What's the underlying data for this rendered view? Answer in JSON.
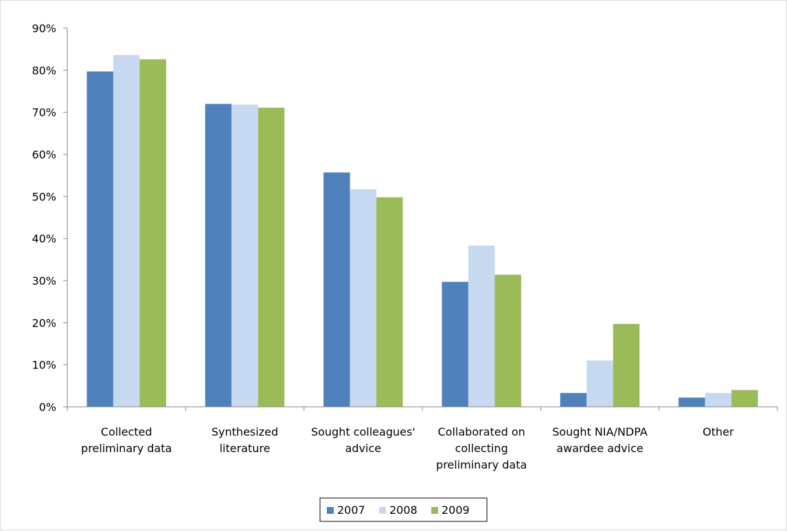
{
  "chart_data": {
    "type": "bar",
    "title": "",
    "xlabel": "",
    "ylabel": "",
    "ylim": [
      0,
      90
    ],
    "y_ticks": [
      "0%",
      "10%",
      "20%",
      "30%",
      "40%",
      "50%",
      "60%",
      "70%",
      "80%",
      "90%"
    ],
    "y_tick_values": [
      0,
      10,
      20,
      30,
      40,
      50,
      60,
      70,
      80,
      90
    ],
    "grid": false,
    "legend_position": "bottom",
    "categories": [
      [
        "Collected",
        "preliminary data"
      ],
      [
        "Synthesized",
        "literature"
      ],
      [
        "Sought colleagues'",
        "advice"
      ],
      [
        "Collaborated on",
        "collecting",
        "preliminary data"
      ],
      [
        "Sought NIA/NDPA",
        "awardee advice"
      ],
      [
        "Other"
      ]
    ],
    "series": [
      {
        "name": "2007",
        "color": "#4f81bd",
        "values": [
          79.7,
          72.0,
          55.7,
          29.7,
          3.3,
          2.2
        ]
      },
      {
        "name": "2008",
        "color": "#c6d9f1",
        "values": [
          83.6,
          71.8,
          51.7,
          38.3,
          11.0,
          3.3
        ]
      },
      {
        "name": "2009",
        "color": "#9bbb59",
        "values": [
          82.6,
          71.1,
          49.8,
          31.4,
          19.7,
          4.0
        ]
      }
    ]
  }
}
